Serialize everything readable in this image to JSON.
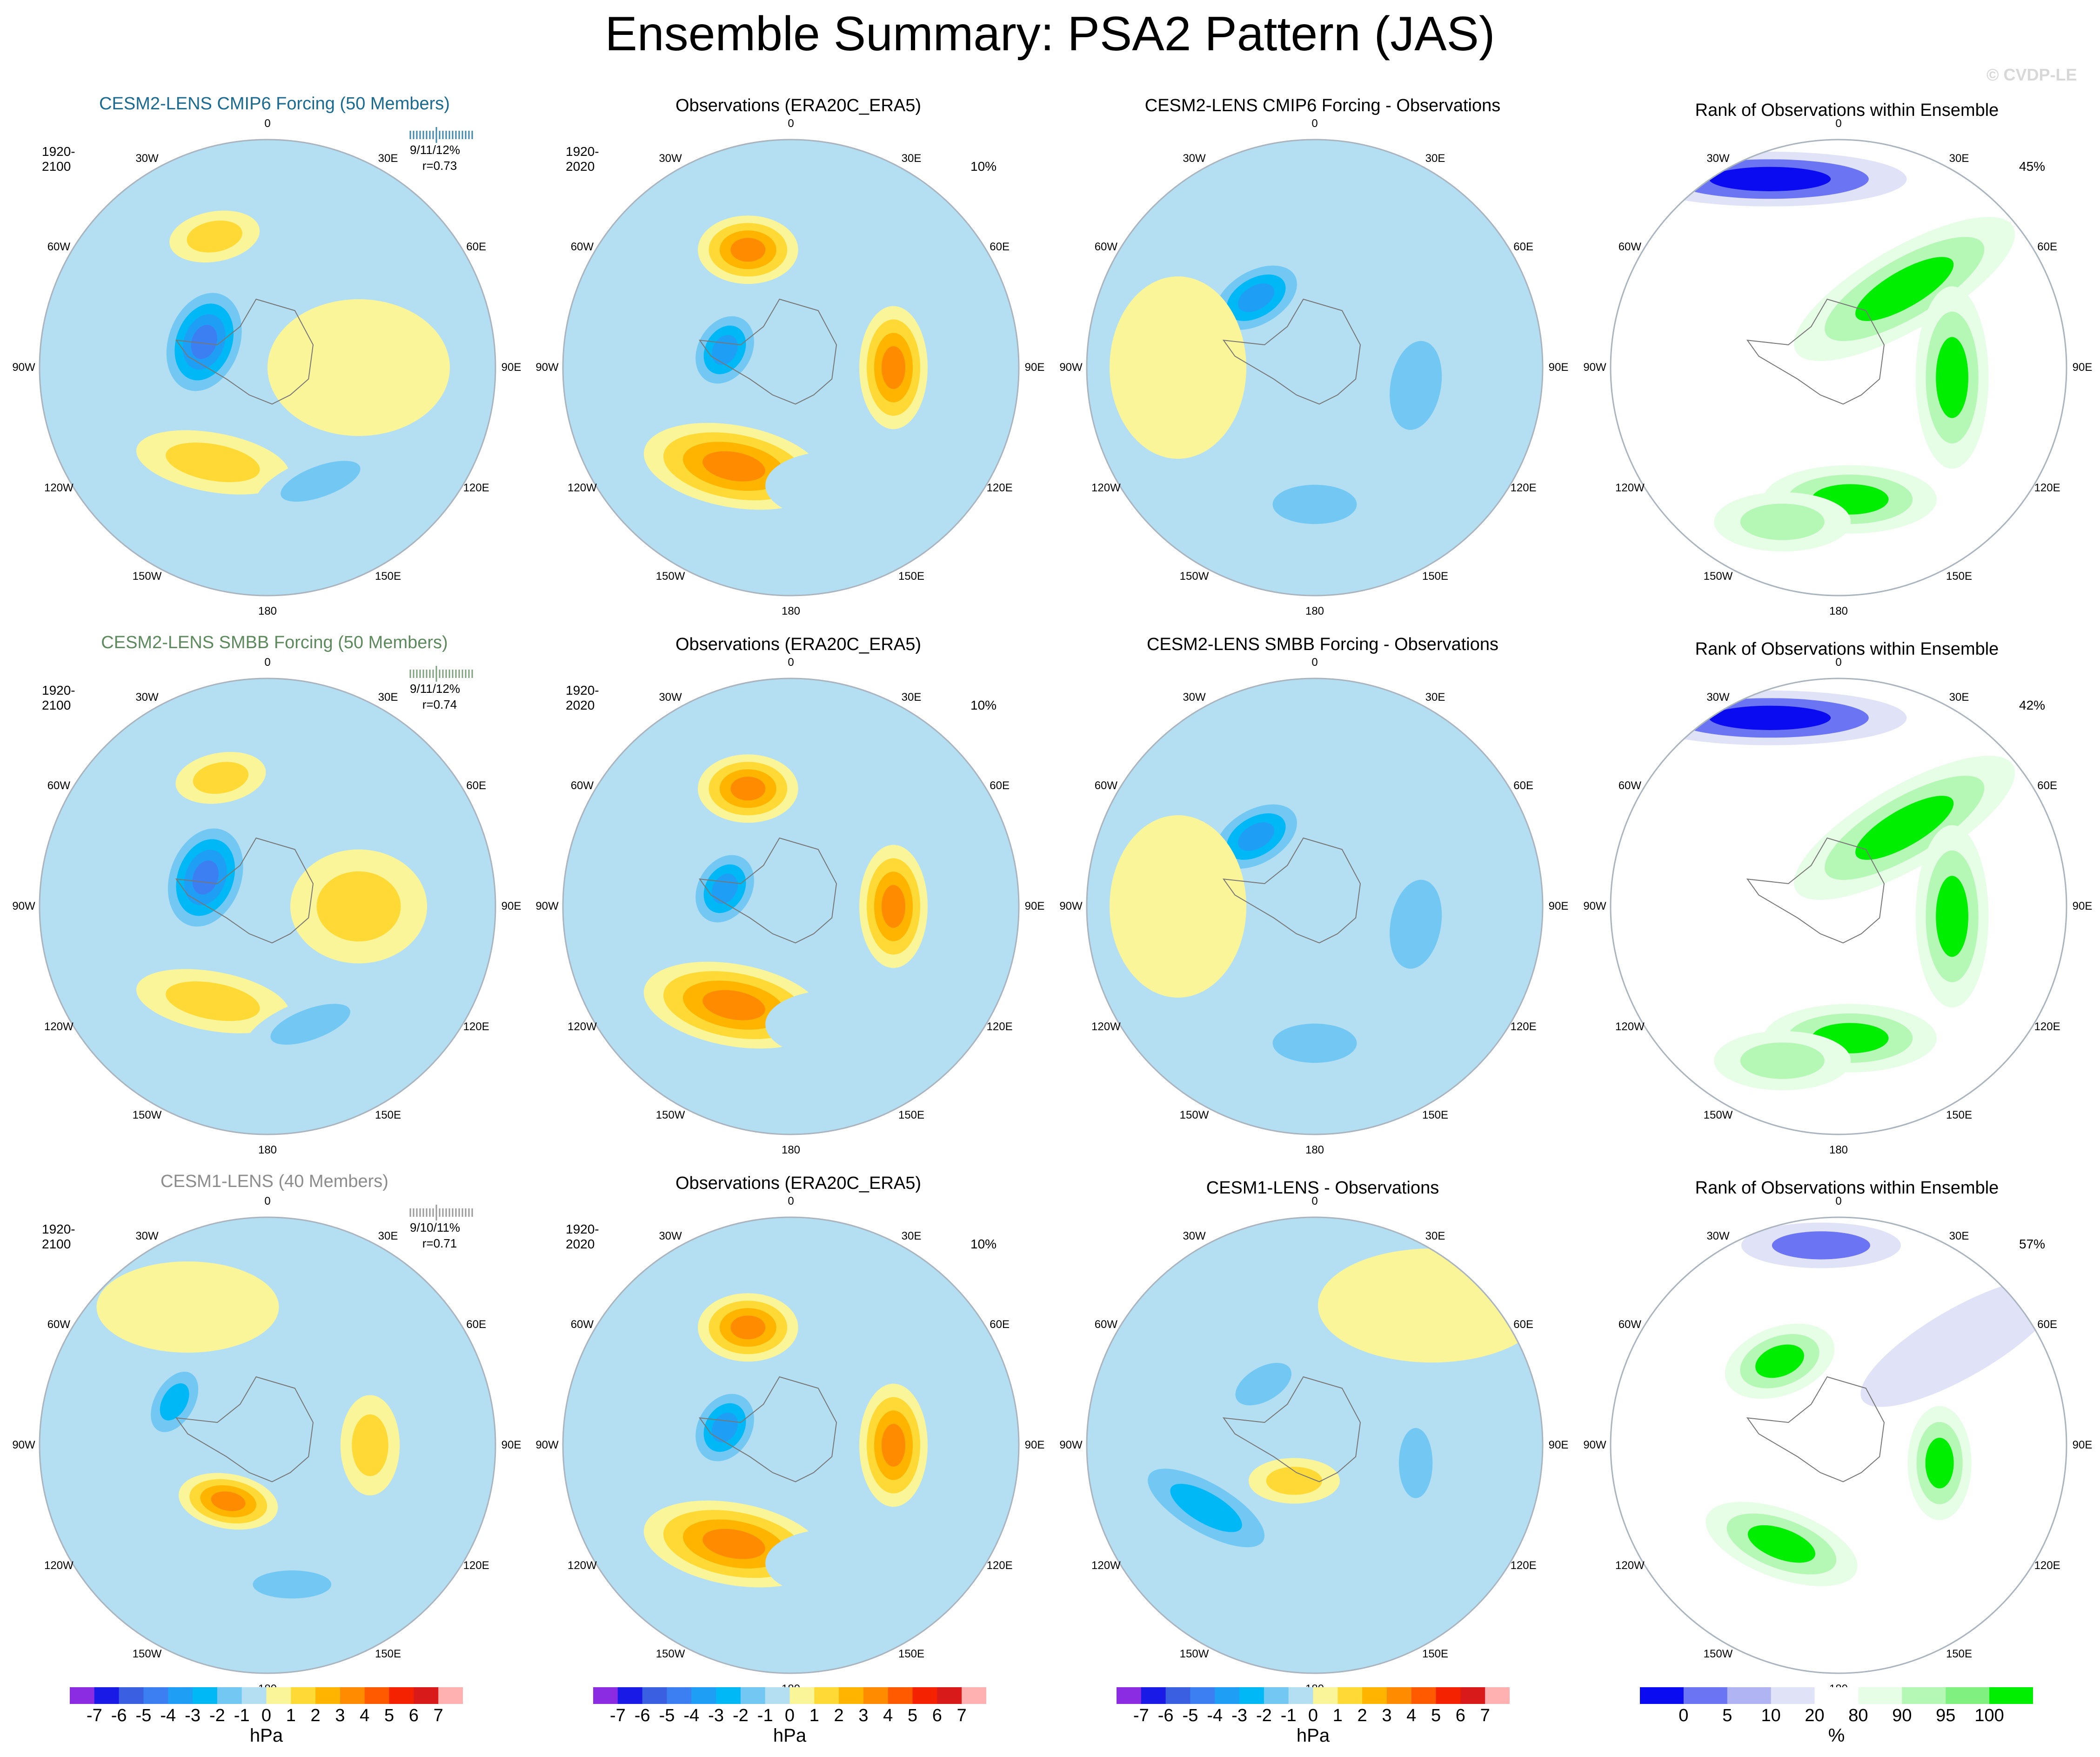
{
  "title": "Ensemble Summary: PSA2 Pattern (JAS)",
  "watermark": "© CVDP-LE",
  "lon_labels": [
    "0",
    "30E",
    "60E",
    "90E",
    "120E",
    "150E",
    "180",
    "150W",
    "120W",
    "90W",
    "60W",
    "30W"
  ],
  "palettes": {
    "diverging": [
      "#8b2be2",
      "#1a1ae6",
      "#3a5fe0",
      "#3b7ff2",
      "#1e9ff5",
      "#00b8f5",
      "#72c8f2",
      "#b4dff2",
      "#fbf59a",
      "#ffd935",
      "#ffb400",
      "#ff8c00",
      "#ff5a00",
      "#f52200",
      "#d91a1a",
      "#ffb0b0"
    ],
    "rank": [
      "#0b0bf2",
      "#6b74f2",
      "#b0b4f2",
      "#e0e2f8",
      "#ffffff",
      "#e6fde6",
      "#b5f7b5",
      "#80f080",
      "#00ee00"
    ]
  },
  "colorbars": {
    "hpa": {
      "labels": [
        "-7",
        "-6",
        "-5",
        "-4",
        "-3",
        "-2",
        "-1",
        "0",
        "1",
        "2",
        "3",
        "4",
        "5",
        "6",
        "7"
      ],
      "unit": "hPa"
    },
    "rank": {
      "labels": [
        "0",
        "5",
        "10",
        "20",
        "80",
        "90",
        "95",
        "100"
      ],
      "unit": "%"
    }
  },
  "rows": [
    {
      "ensemble": {
        "title": "CESM2-LENS CMIP6 Forcing (50 Members)",
        "period": "1920-2100",
        "stats": "9/11/12%",
        "corr": "r=0.73"
      },
      "obs": {
        "title": "Observations (ERA20C_ERA5)",
        "period": "1920-2020",
        "pct": "10%"
      },
      "diff": {
        "title": "CESM2-LENS CMIP6 Forcing - Observations"
      },
      "rank": {
        "title": "Rank of Observations within Ensemble",
        "pct": "45%"
      }
    },
    {
      "ensemble": {
        "title": "CESM2-LENS SMBB Forcing (50 Members)",
        "period": "1920-2100",
        "stats": "9/11/12%",
        "corr": "r=0.74"
      },
      "obs": {
        "title": "Observations (ERA20C_ERA5)",
        "period": "1920-2020",
        "pct": "10%"
      },
      "diff": {
        "title": "CESM2-LENS SMBB Forcing - Observations"
      },
      "rank": {
        "title": "Rank of Observations within Ensemble",
        "pct": "42%"
      }
    },
    {
      "ensemble": {
        "title": "CESM1-LENS (40 Members)",
        "period": "1920-2100",
        "stats": "9/10/11%",
        "corr": "r=0.71"
      },
      "obs": {
        "title": "Observations (ERA20C_ERA5)",
        "period": "1920-2020",
        "pct": "10%"
      },
      "diff": {
        "title": "CESM1-LENS - Observations"
      },
      "rank": {
        "title": "Rank of Observations within Ensemble",
        "pct": "57%"
      }
    }
  ],
  "chart_data": {
    "type": "heatmap",
    "projection": "south polar stereographic",
    "variable": "sea level pressure anomaly",
    "units": "hPa",
    "contour_levels": [
      -7,
      -6,
      -5,
      -4,
      -3,
      -2,
      -1,
      0,
      1,
      2,
      3,
      4,
      5,
      6,
      7
    ],
    "rank_levels": [
      0,
      5,
      10,
      20,
      80,
      90,
      95,
      100
    ],
    "panels": [
      {
        "row": 0,
        "col": 0,
        "kind": "field",
        "features": [
          {
            "lon": -68,
            "colat": 0.3,
            "rx": 0.27,
            "ry": 0.19,
            "rot": -70,
            "peak": -4.5
          },
          {
            "lon": -22,
            "colat": 0.62,
            "rx": 0.2,
            "ry": 0.11,
            "rot": -10,
            "peak": 1.4
          },
          {
            "lon": -150,
            "colat": 0.48,
            "rx": 0.34,
            "ry": 0.13,
            "rot": 10,
            "peak": 1.8
          },
          {
            "lon": 155,
            "colat": 0.55,
            "rx": 0.3,
            "ry": 0.11,
            "rot": -20,
            "peak": -2.0
          },
          {
            "lon": 90,
            "colat": 0.4,
            "rx": 0.4,
            "ry": 0.3,
            "rot": 0,
            "peak": 0.6
          }
        ]
      },
      {
        "row": 0,
        "col": 1,
        "kind": "field",
        "features": [
          {
            "lon": -75,
            "colat": 0.3,
            "rx": 0.2,
            "ry": 0.15,
            "rot": -60,
            "peak": -3.5
          },
          {
            "lon": -20,
            "colat": 0.55,
            "rx": 0.22,
            "ry": 0.15,
            "rot": 0,
            "peak": 3.2
          },
          {
            "lon": 90,
            "colat": 0.45,
            "rx": 0.15,
            "ry": 0.27,
            "rot": 0,
            "peak": 3.4
          },
          {
            "lon": -150,
            "colat": 0.5,
            "rx": 0.4,
            "ry": 0.18,
            "rot": 10,
            "peak": 3.6
          },
          {
            "lon": 160,
            "colat": 0.55,
            "rx": 0.3,
            "ry": 0.15,
            "rot": 0,
            "peak": -0.5
          }
        ]
      },
      {
        "row": 0,
        "col": 2,
        "kind": "field",
        "features": [
          {
            "lon": -40,
            "colat": 0.4,
            "rx": 0.25,
            "ry": 0.15,
            "rot": -30,
            "peak": -3.2
          },
          {
            "lon": 100,
            "colat": 0.45,
            "rx": 0.18,
            "ry": 0.32,
            "rot": 10,
            "peak": -1.6
          },
          {
            "lon": 180,
            "colat": 0.6,
            "rx": 0.3,
            "ry": 0.14,
            "rot": 0,
            "peak": -1.8
          },
          {
            "lon": -90,
            "colat": 0.6,
            "rx": 0.3,
            "ry": 0.4,
            "rot": 0,
            "peak": 0.8
          }
        ]
      },
      {
        "row": 0,
        "col": 3,
        "kind": "rank",
        "features": [
          {
            "lon": -20,
            "colat": 0.88,
            "rx": 0.6,
            "ry": 0.12,
            "rot": 0,
            "peak": -2.8
          },
          {
            "lon": 40,
            "colat": 0.45,
            "rx": 0.55,
            "ry": 0.18,
            "rot": -30,
            "peak": 3.0
          },
          {
            "lon": 95,
            "colat": 0.5,
            "rx": 0.16,
            "ry": 0.4,
            "rot": 0,
            "peak": 3.0
          },
          {
            "lon": 175,
            "colat": 0.58,
            "rx": 0.38,
            "ry": 0.15,
            "rot": 0,
            "peak": 3.0
          },
          {
            "lon": -160,
            "colat": 0.72,
            "rx": 0.3,
            "ry": 0.13,
            "rot": 0,
            "peak": 2.0
          }
        ]
      },
      {
        "row": 1,
        "col": 0,
        "kind": "field",
        "features": [
          {
            "lon": -65,
            "colat": 0.3,
            "rx": 0.27,
            "ry": 0.19,
            "rot": -70,
            "peak": -4.5
          },
          {
            "lon": -20,
            "colat": 0.6,
            "rx": 0.2,
            "ry": 0.11,
            "rot": -10,
            "peak": 1.4
          },
          {
            "lon": -150,
            "colat": 0.48,
            "rx": 0.34,
            "ry": 0.13,
            "rot": 10,
            "peak": 1.8
          },
          {
            "lon": 160,
            "colat": 0.55,
            "rx": 0.3,
            "ry": 0.11,
            "rot": -20,
            "peak": -2.0
          },
          {
            "lon": 90,
            "colat": 0.4,
            "rx": 0.3,
            "ry": 0.25,
            "rot": 0,
            "peak": 1.2
          }
        ]
      },
      {
        "row": 1,
        "col": 1,
        "kind": "field",
        "features": [
          {
            "lon": -75,
            "colat": 0.3,
            "rx": 0.2,
            "ry": 0.15,
            "rot": -60,
            "peak": -3.5
          },
          {
            "lon": -20,
            "colat": 0.55,
            "rx": 0.22,
            "ry": 0.15,
            "rot": 0,
            "peak": 3.2
          },
          {
            "lon": 90,
            "colat": 0.45,
            "rx": 0.15,
            "ry": 0.27,
            "rot": 0,
            "peak": 3.4
          },
          {
            "lon": -150,
            "colat": 0.5,
            "rx": 0.4,
            "ry": 0.18,
            "rot": 10,
            "peak": 3.6
          },
          {
            "lon": 160,
            "colat": 0.55,
            "rx": 0.3,
            "ry": 0.15,
            "rot": 0,
            "peak": -0.5
          }
        ]
      },
      {
        "row": 1,
        "col": 2,
        "kind": "field",
        "features": [
          {
            "lon": -40,
            "colat": 0.4,
            "rx": 0.25,
            "ry": 0.15,
            "rot": -30,
            "peak": -3.2
          },
          {
            "lon": 100,
            "colat": 0.45,
            "rx": 0.18,
            "ry": 0.32,
            "rot": 10,
            "peak": -1.6
          },
          {
            "lon": 180,
            "colat": 0.6,
            "rx": 0.3,
            "ry": 0.14,
            "rot": 0,
            "peak": -1.8
          },
          {
            "lon": -90,
            "colat": 0.6,
            "rx": 0.3,
            "ry": 0.4,
            "rot": 0,
            "peak": 0.8
          }
        ]
      },
      {
        "row": 1,
        "col": 3,
        "kind": "rank",
        "features": [
          {
            "lon": -20,
            "colat": 0.88,
            "rx": 0.6,
            "ry": 0.12,
            "rot": 0,
            "peak": -2.8
          },
          {
            "lon": 40,
            "colat": 0.45,
            "rx": 0.55,
            "ry": 0.18,
            "rot": -30,
            "peak": 3.0
          },
          {
            "lon": 95,
            "colat": 0.5,
            "rx": 0.16,
            "ry": 0.4,
            "rot": 0,
            "peak": 3.0
          },
          {
            "lon": 175,
            "colat": 0.58,
            "rx": 0.38,
            "ry": 0.15,
            "rot": 0,
            "peak": 3.0
          },
          {
            "lon": -160,
            "colat": 0.72,
            "rx": 0.3,
            "ry": 0.13,
            "rot": 0,
            "peak": 2.0
          }
        ]
      },
      {
        "row": 2,
        "col": 0,
        "kind": "field",
        "features": [
          {
            "lon": -65,
            "colat": 0.45,
            "rx": 0.2,
            "ry": 0.12,
            "rot": -60,
            "peak": -2.6
          },
          {
            "lon": -145,
            "colat": 0.3,
            "rx": 0.22,
            "ry": 0.12,
            "rot": 10,
            "peak": 3.2
          },
          {
            "lon": 90,
            "colat": 0.45,
            "rx": 0.13,
            "ry": 0.22,
            "rot": 0,
            "peak": 1.8
          },
          {
            "lon": 170,
            "colat": 0.62,
            "rx": 0.28,
            "ry": 0.1,
            "rot": 0,
            "peak": -1.6
          },
          {
            "lon": -30,
            "colat": 0.7,
            "rx": 0.4,
            "ry": 0.2,
            "rot": 0,
            "peak": 0.5
          }
        ]
      },
      {
        "row": 2,
        "col": 1,
        "kind": "field",
        "features": [
          {
            "lon": -75,
            "colat": 0.3,
            "rx": 0.2,
            "ry": 0.15,
            "rot": -60,
            "peak": -3.5
          },
          {
            "lon": -20,
            "colat": 0.55,
            "rx": 0.22,
            "ry": 0.15,
            "rot": 0,
            "peak": 3.2
          },
          {
            "lon": 90,
            "colat": 0.45,
            "rx": 0.15,
            "ry": 0.27,
            "rot": 0,
            "peak": 3.4
          },
          {
            "lon": -150,
            "colat": 0.5,
            "rx": 0.4,
            "ry": 0.18,
            "rot": 10,
            "peak": 3.6
          },
          {
            "lon": 160,
            "colat": 0.55,
            "rx": 0.3,
            "ry": 0.15,
            "rot": 0,
            "peak": -0.5
          }
        ]
      },
      {
        "row": 2,
        "col": 2,
        "kind": "field",
        "features": [
          {
            "lon": -40,
            "colat": 0.35,
            "rx": 0.22,
            "ry": 0.12,
            "rot": -30,
            "peak": -1.6
          },
          {
            "lon": -120,
            "colat": 0.55,
            "rx": 0.4,
            "ry": 0.15,
            "rot": 30,
            "peak": -2.2
          },
          {
            "lon": 100,
            "colat": 0.45,
            "rx": 0.12,
            "ry": 0.25,
            "rot": 0,
            "peak": -1.6
          },
          {
            "lon": -150,
            "colat": 0.18,
            "rx": 0.2,
            "ry": 0.1,
            "rot": 0,
            "peak": 1.6
          },
          {
            "lon": 40,
            "colat": 0.8,
            "rx": 0.5,
            "ry": 0.25,
            "rot": 0,
            "peak": 0.5
          }
        ]
      },
      {
        "row": 2,
        "col": 3,
        "kind": "rank",
        "features": [
          {
            "lon": -5,
            "colat": 0.88,
            "rx": 0.35,
            "ry": 0.1,
            "rot": 0,
            "peak": -2.0
          },
          {
            "lon": -35,
            "colat": 0.45,
            "rx": 0.25,
            "ry": 0.15,
            "rot": -20,
            "peak": 3.0
          },
          {
            "lon": 100,
            "colat": 0.45,
            "rx": 0.14,
            "ry": 0.25,
            "rot": 0,
            "peak": 3.0
          },
          {
            "lon": -150,
            "colat": 0.5,
            "rx": 0.35,
            "ry": 0.15,
            "rot": 20,
            "peak": 3.0
          },
          {
            "lon": 50,
            "colat": 0.7,
            "rx": 0.5,
            "ry": 0.15,
            "rot": -30,
            "peak": -0.8
          }
        ]
      }
    ]
  }
}
